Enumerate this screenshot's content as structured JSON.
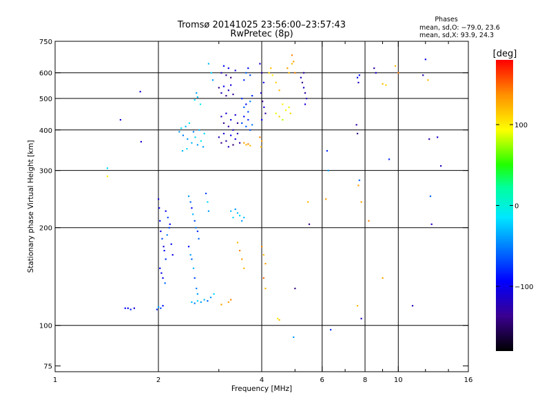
{
  "title_line1": "Tromsø 20141025 23:56:00–23:57:43",
  "title_line2": "RwPretec (8p)",
  "stats": {
    "heading": "Phases",
    "line1": "mean, sd,O: −79.0, 23.6",
    "line2": "mean, sd,X:  93.9, 24.3"
  },
  "colorbar": {
    "unit_label": "[deg]",
    "ticks": [
      "100",
      "0",
      "−100"
    ],
    "tick_values": [
      100,
      0,
      -100
    ],
    "range": [
      -180,
      180
    ]
  },
  "chart_data": {
    "type": "scatter",
    "xlabel": "Frequency [MHz]",
    "ylabel": "Stationary phase Virtual Height [km]",
    "x_scale": "log",
    "y_scale": "log",
    "xlim": [
      1,
      16
    ],
    "ylim": [
      72,
      750
    ],
    "x_ticks": [
      1,
      2,
      4,
      6,
      8,
      10,
      16
    ],
    "x_ticklabels": [
      "1",
      "2",
      "4",
      "6",
      "8",
      "10",
      "16"
    ],
    "x_minor": [
      3,
      5,
      7,
      9,
      12,
      14
    ],
    "y_ticks": [
      75,
      100,
      200,
      300,
      400,
      500,
      600,
      750
    ],
    "y_ticklabels": [
      "75",
      "100",
      "200",
      "300",
      "400",
      "500",
      "600",
      "750"
    ],
    "grid_x": [
      2,
      4,
      6,
      8,
      10
    ],
    "grid_y": [
      100,
      200,
      300,
      400,
      500,
      600
    ],
    "grid": true,
    "point_color": "phase in degrees (colorbar)",
    "points": [
      [
        1.42,
        305,
        -20
      ],
      [
        1.42,
        288,
        100
      ],
      [
        1.55,
        430,
        -110
      ],
      [
        1.77,
        525,
        -110
      ],
      [
        1.78,
        368,
        -110
      ],
      [
        1.6,
        113,
        -90
      ],
      [
        1.63,
        113,
        -100
      ],
      [
        1.66,
        112,
        -80
      ],
      [
        1.7,
        113,
        -110
      ],
      [
        1.98,
        112,
        -80
      ],
      [
        2.0,
        114,
        -40
      ],
      [
        2.03,
        113,
        -70
      ],
      [
        2.06,
        115,
        -90
      ],
      [
        2.0,
        245,
        -110
      ],
      [
        2.01,
        230,
        -100
      ],
      [
        2.02,
        210,
        -90
      ],
      [
        2.03,
        195,
        -100
      ],
      [
        2.05,
        185,
        -70
      ],
      [
        2.07,
        175,
        -110
      ],
      [
        2.08,
        170,
        -90
      ],
      [
        2.1,
        160,
        -80
      ],
      [
        2.02,
        150,
        -90
      ],
      [
        2.04,
        145,
        -100
      ],
      [
        2.06,
        140,
        -100
      ],
      [
        2.09,
        135,
        -60
      ],
      [
        2.12,
        190,
        -50
      ],
      [
        2.15,
        200,
        -70
      ],
      [
        2.18,
        178,
        -90
      ],
      [
        2.2,
        165,
        -100
      ],
      [
        2.1,
        225,
        -100
      ],
      [
        2.13,
        215,
        -70
      ],
      [
        2.16,
        205,
        -100
      ],
      [
        2.45,
        250,
        -40
      ],
      [
        2.48,
        240,
        -60
      ],
      [
        2.5,
        230,
        -90
      ],
      [
        2.52,
        220,
        -30
      ],
      [
        2.55,
        210,
        -70
      ],
      [
        2.57,
        200,
        -50
      ],
      [
        2.6,
        195,
        -80
      ],
      [
        2.62,
        185,
        -60
      ],
      [
        2.45,
        175,
        -90
      ],
      [
        2.48,
        165,
        -40
      ],
      [
        2.5,
        160,
        -60
      ],
      [
        2.53,
        150,
        -30
      ],
      [
        2.55,
        140,
        -70
      ],
      [
        2.58,
        130,
        -50
      ],
      [
        2.6,
        125,
        -40
      ],
      [
        2.5,
        118,
        -30
      ],
      [
        2.55,
        117,
        -50
      ],
      [
        2.6,
        119,
        -20
      ],
      [
        2.66,
        118,
        -40
      ],
      [
        2.72,
        120,
        -30
      ],
      [
        2.78,
        119,
        -60
      ],
      [
        2.84,
        122,
        -40
      ],
      [
        2.9,
        125,
        -20
      ],
      [
        2.75,
        255,
        -70
      ],
      [
        2.78,
        240,
        -20
      ],
      [
        2.8,
        225,
        -40
      ],
      [
        2.3,
        395,
        -40
      ],
      [
        2.33,
        405,
        -20
      ],
      [
        2.36,
        385,
        -50
      ],
      [
        2.4,
        410,
        -30
      ],
      [
        2.43,
        375,
        -40
      ],
      [
        2.46,
        420,
        -10
      ],
      [
        2.5,
        365,
        -30
      ],
      [
        2.53,
        395,
        -50
      ],
      [
        2.56,
        380,
        -20
      ],
      [
        2.6,
        360,
        -40
      ],
      [
        2.63,
        400,
        -30
      ],
      [
        2.66,
        370,
        -10
      ],
      [
        2.7,
        355,
        -40
      ],
      [
        2.72,
        390,
        -20
      ],
      [
        2.35,
        345,
        -30
      ],
      [
        2.42,
        350,
        -20
      ],
      [
        2.55,
        495,
        -20
      ],
      [
        2.6,
        505,
        -30
      ],
      [
        2.65,
        480,
        -10
      ],
      [
        2.58,
        520,
        -40
      ],
      [
        2.8,
        640,
        -30
      ],
      [
        2.85,
        600,
        -20
      ],
      [
        2.88,
        570,
        -40
      ],
      [
        3.0,
        540,
        -140
      ],
      [
        3.05,
        520,
        -120
      ],
      [
        3.1,
        545,
        -100
      ],
      [
        3.15,
        510,
        -140
      ],
      [
        3.2,
        530,
        -120
      ],
      [
        3.25,
        550,
        -110
      ],
      [
        3.3,
        515,
        -130
      ],
      [
        3.05,
        440,
        -120
      ],
      [
        3.1,
        420,
        -140
      ],
      [
        3.15,
        450,
        -110
      ],
      [
        3.2,
        410,
        -130
      ],
      [
        3.25,
        430,
        -100
      ],
      [
        3.3,
        400,
        -120
      ],
      [
        3.35,
        445,
        -110
      ],
      [
        3.4,
        420,
        -130
      ],
      [
        3.0,
        380,
        -120
      ],
      [
        3.05,
        365,
        -140
      ],
      [
        3.1,
        390,
        -110
      ],
      [
        3.15,
        370,
        -130
      ],
      [
        3.2,
        355,
        -120
      ],
      [
        3.25,
        385,
        -100
      ],
      [
        3.3,
        360,
        -140
      ],
      [
        3.35,
        375,
        -110
      ],
      [
        3.4,
        390,
        -120
      ],
      [
        3.45,
        365,
        -130
      ],
      [
        3.05,
        600,
        -120
      ],
      [
        3.1,
        630,
        -90
      ],
      [
        3.15,
        590,
        -130
      ],
      [
        3.2,
        620,
        -100
      ],
      [
        3.25,
        580,
        -140
      ],
      [
        3.35,
        610,
        -110
      ],
      [
        3.5,
        500,
        -80
      ],
      [
        3.55,
        470,
        -60
      ],
      [
        3.6,
        480,
        -90
      ],
      [
        3.65,
        455,
        -70
      ],
      [
        3.7,
        490,
        -50
      ],
      [
        3.75,
        510,
        -80
      ],
      [
        3.5,
        420,
        -70
      ],
      [
        3.55,
        440,
        -90
      ],
      [
        3.6,
        410,
        -60
      ],
      [
        3.65,
        430,
        -80
      ],
      [
        3.7,
        400,
        -70
      ],
      [
        3.75,
        415,
        -50
      ],
      [
        3.55,
        570,
        -80
      ],
      [
        3.6,
        600,
        -60
      ],
      [
        3.65,
        620,
        -90
      ],
      [
        3.7,
        590,
        -70
      ],
      [
        3.55,
        365,
        130
      ],
      [
        3.6,
        360,
        120
      ],
      [
        3.65,
        362,
        140
      ],
      [
        3.7,
        358,
        120
      ],
      [
        3.25,
        225,
        -30
      ],
      [
        3.3,
        215,
        -20
      ],
      [
        3.35,
        228,
        -40
      ],
      [
        3.4,
        222,
        -30
      ],
      [
        3.45,
        218,
        -20
      ],
      [
        3.5,
        210,
        -40
      ],
      [
        3.55,
        215,
        -30
      ],
      [
        3.4,
        180,
        120
      ],
      [
        3.45,
        170,
        140
      ],
      [
        3.5,
        160,
        130
      ],
      [
        3.55,
        150,
        120
      ],
      [
        3.2,
        118,
        130
      ],
      [
        3.25,
        120,
        140
      ],
      [
        3.05,
        116,
        130
      ],
      [
        3.95,
        640,
        -110
      ],
      [
        4.0,
        600,
        -130
      ],
      [
        4.05,
        560,
        -100
      ],
      [
        3.98,
        520,
        -120
      ],
      [
        4.02,
        490,
        -140
      ],
      [
        4.06,
        470,
        -110
      ],
      [
        4.1,
        450,
        -130
      ],
      [
        4.0,
        430,
        -100
      ],
      [
        3.95,
        380,
        140
      ],
      [
        4.0,
        370,
        130
      ],
      [
        3.98,
        355,
        120
      ],
      [
        4.2,
        600,
        110
      ],
      [
        4.25,
        620,
        120
      ],
      [
        4.3,
        590,
        100
      ],
      [
        4.4,
        560,
        110
      ],
      [
        4.5,
        530,
        120
      ],
      [
        4.6,
        480,
        100
      ],
      [
        4.4,
        450,
        90
      ],
      [
        4.5,
        440,
        110
      ],
      [
        4.6,
        430,
        80
      ],
      [
        4.7,
        460,
        100
      ],
      [
        4.8,
        470,
        90
      ],
      [
        4.85,
        450,
        110
      ],
      [
        4.75,
        620,
        130
      ],
      [
        4.8,
        600,
        120
      ],
      [
        4.9,
        680,
        140
      ],
      [
        4.95,
        650,
        130
      ],
      [
        5.0,
        600,
        140
      ],
      [
        4.9,
        640,
        120
      ],
      [
        5.2,
        580,
        -120
      ],
      [
        5.25,
        560,
        -140
      ],
      [
        5.3,
        540,
        -110
      ],
      [
        5.35,
        520,
        -130
      ],
      [
        5.4,
        500,
        -120
      ],
      [
        5.3,
        600,
        -130
      ],
      [
        5.35,
        480,
        -110
      ],
      [
        4.0,
        175,
        140
      ],
      [
        4.05,
        165,
        120
      ],
      [
        4.1,
        155,
        130
      ],
      [
        4.05,
        140,
        150
      ],
      [
        4.1,
        130,
        120
      ],
      [
        4.45,
        105,
        100
      ],
      [
        4.5,
        104,
        120
      ],
      [
        4.95,
        92,
        -40
      ],
      [
        5.0,
        130,
        -140
      ],
      [
        5.45,
        240,
        120
      ],
      [
        5.5,
        205,
        -140
      ],
      [
        6.2,
        345,
        -80
      ],
      [
        6.25,
        300,
        -40
      ],
      [
        6.15,
        245,
        130
      ],
      [
        6.35,
        97,
        -80
      ],
      [
        7.6,
        580,
        -100
      ],
      [
        7.65,
        560,
        -120
      ],
      [
        7.7,
        590,
        -90
      ],
      [
        7.55,
        415,
        -130
      ],
      [
        7.6,
        390,
        -140
      ],
      [
        7.65,
        270,
        130
      ],
      [
        7.7,
        280,
        -60
      ],
      [
        7.8,
        240,
        130
      ],
      [
        7.6,
        115,
        120
      ],
      [
        7.8,
        105,
        -120
      ],
      [
        8.2,
        210,
        140
      ],
      [
        8.5,
        620,
        -130
      ],
      [
        8.6,
        600,
        -110
      ],
      [
        9.0,
        555,
        120
      ],
      [
        9.2,
        550,
        110
      ],
      [
        9.4,
        325,
        -80
      ],
      [
        9.0,
        140,
        130
      ],
      [
        9.8,
        630,
        120
      ],
      [
        10.0,
        600,
        140
      ],
      [
        11.0,
        115,
        -120
      ],
      [
        11.8,
        590,
        -120
      ],
      [
        12.0,
        660,
        -100
      ],
      [
        12.2,
        570,
        120
      ],
      [
        12.3,
        375,
        -130
      ],
      [
        12.4,
        250,
        -60
      ],
      [
        12.5,
        205,
        -110
      ],
      [
        13.0,
        380,
        -110
      ],
      [
        13.3,
        310,
        -120
      ]
    ]
  }
}
